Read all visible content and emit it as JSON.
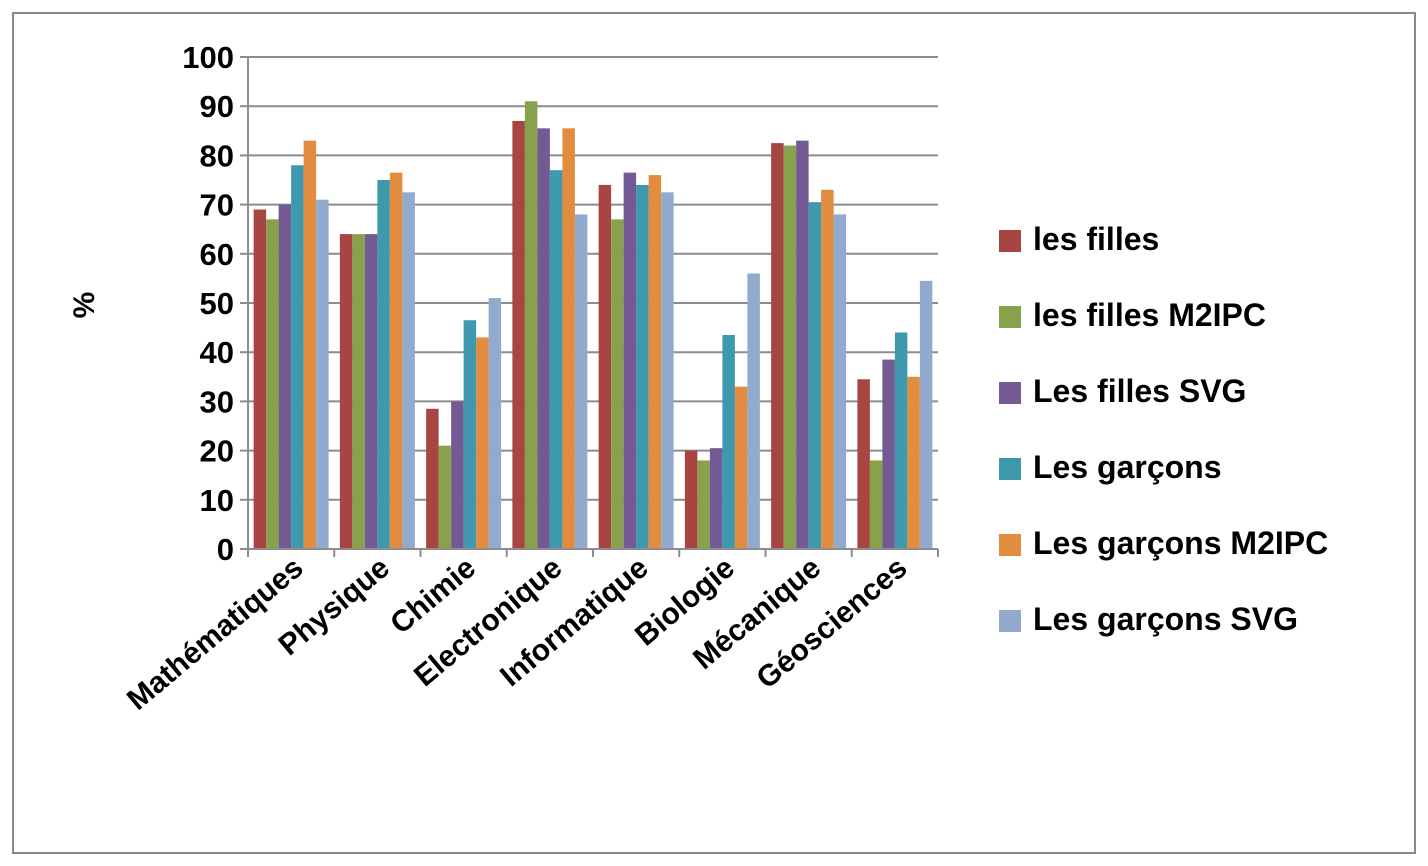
{
  "chart_data": {
    "type": "bar",
    "title": "",
    "xlabel": "",
    "ylabel": "%",
    "ylim": [
      0,
      100
    ],
    "yticks": [
      0,
      10,
      20,
      30,
      40,
      50,
      60,
      70,
      80,
      90,
      100
    ],
    "grid": "horizontal",
    "legend_position": "right",
    "categories": [
      "Mathématiques",
      "Physique",
      "Chimie",
      "Electronique",
      "Informatique",
      "Biologie",
      "Mécanique",
      "Géosciences"
    ],
    "series": [
      {
        "name": "les filles",
        "color": "#A84543",
        "values": [
          69,
          64,
          28.5,
          87,
          74,
          20,
          82.5,
          34.5
        ]
      },
      {
        "name": "les filles M2IPC",
        "color": "#87A24A",
        "values": [
          67,
          64,
          21,
          91,
          67,
          18,
          82,
          18
        ]
      },
      {
        "name": "Les filles SVG",
        "color": "#735A94",
        "values": [
          70,
          64,
          30,
          85.5,
          76.5,
          20.5,
          83,
          38.5
        ]
      },
      {
        "name": "Les garçons",
        "color": "#3F99AE",
        "values": [
          78,
          75,
          46.5,
          77,
          74,
          43.5,
          70.5,
          44
        ]
      },
      {
        "name": "Les garçons M2IPC",
        "color": "#E18C3F",
        "values": [
          83,
          76.5,
          43,
          85.5,
          76,
          33,
          73,
          35
        ]
      },
      {
        "name": "Les garçons SVG",
        "color": "#93AACF",
        "values": [
          71,
          72.5,
          51,
          68,
          72.5,
          56,
          68,
          54.5
        ]
      }
    ]
  }
}
